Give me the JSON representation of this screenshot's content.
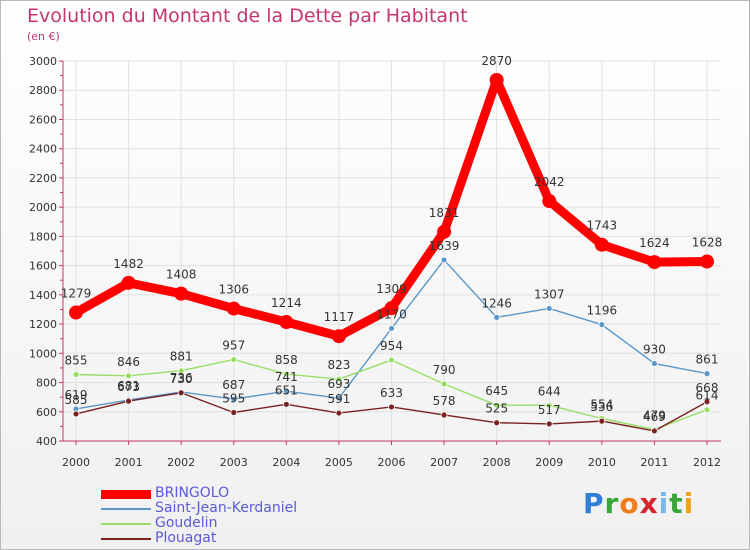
{
  "title": "Evolution du Montant de la Dette par Habitant",
  "unit": "(en €)",
  "brand": {
    "letters": [
      "P",
      "r",
      "o",
      "x",
      "i",
      "t",
      "i"
    ],
    "colors": [
      "#2f7fd6",
      "#3aa53a",
      "#f07d1a",
      "#d7262b",
      "#7cb8e6",
      "#3aa53a",
      "#f0a21a"
    ]
  },
  "chart_data": {
    "type": "line",
    "x": [
      "2000",
      "2001",
      "2002",
      "2003",
      "2004",
      "2005",
      "2006",
      "2007",
      "2008",
      "2009",
      "2010",
      "2011",
      "2012"
    ],
    "ylim": [
      400,
      3000
    ],
    "yticks": [
      "400",
      "600",
      "800",
      "1000",
      "1200",
      "1400",
      "1600",
      "1800",
      "2000",
      "2200",
      "2400",
      "2600",
      "2800",
      "3000"
    ],
    "grid": true,
    "legend_position": "bottom-left",
    "series": [
      {
        "name": "BRINGOLO",
        "color": "#ff0000",
        "values": [
          1279,
          1482,
          1408,
          1306,
          1214,
          1117,
          1309,
          1831,
          2870,
          2042,
          1743,
          1624,
          1628
        ],
        "labels": [
          "1279",
          "1482",
          "1408",
          "1306",
          "1214",
          "1117",
          "1309",
          "1831",
          "2870",
          "2042",
          "1743",
          "1624",
          "1628"
        ]
      },
      {
        "name": "Saint-Jean-Kerdaniel",
        "color": "#5b97c8",
        "values": [
          619,
          681,
          736,
          687,
          741,
          693,
          1170,
          1639,
          1246,
          1307,
          1196,
          930,
          861
        ],
        "labels": [
          "619",
          "681",
          "736",
          "687",
          "741",
          "693",
          "1170",
          "1639",
          "1246",
          "1307",
          "1196",
          "930",
          "861"
        ]
      },
      {
        "name": "Goudelin",
        "color": "#99dd66",
        "values": [
          855,
          846,
          881,
          957,
          858,
          823,
          954,
          790,
          645,
          644,
          554,
          479,
          614
        ],
        "labels": [
          "855",
          "846",
          "881",
          "957",
          "858",
          "823",
          "954",
          "790",
          "645",
          "644",
          "554",
          "479",
          "614"
        ]
      },
      {
        "name": "Plouagat",
        "color": "#7a2222",
        "values": [
          585,
          673,
          730,
          595,
          651,
          591,
          633,
          578,
          525,
          517,
          536,
          469,
          668
        ],
        "labels": [
          "585",
          "673",
          "730",
          "595",
          "651",
          "591",
          "633",
          "578",
          "525",
          "517",
          "536",
          "469",
          "668"
        ]
      }
    ]
  }
}
